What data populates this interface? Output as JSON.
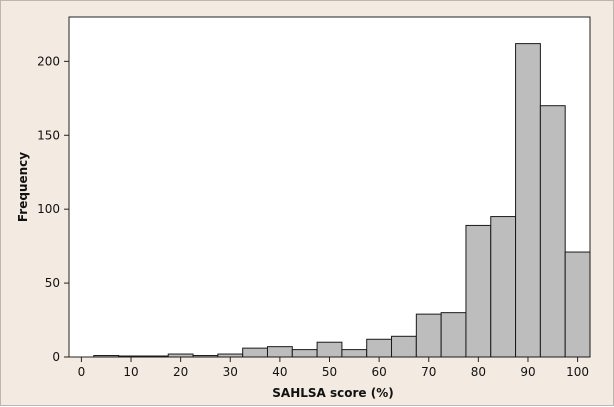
{
  "chart_data": {
    "type": "bar",
    "subtype": "histogram",
    "xlabel": "SAHLSA score (%)",
    "ylabel": "Frequency",
    "xlim": [
      -2.5,
      102.5
    ],
    "ylim": [
      0,
      230
    ],
    "xticks": [
      0,
      10,
      20,
      30,
      40,
      50,
      60,
      70,
      80,
      90,
      100
    ],
    "yticks": [
      0,
      50,
      100,
      150,
      200
    ],
    "bin_width": 5,
    "bins": [
      {
        "x0": 2.5,
        "x1": 7.5,
        "value": 1
      },
      {
        "x0": 7.5,
        "x1": 12.5,
        "value": 0
      },
      {
        "x0": 12.5,
        "x1": 17.5,
        "value": 0
      },
      {
        "x0": 17.5,
        "x1": 22.5,
        "value": 2
      },
      {
        "x0": 22.5,
        "x1": 27.5,
        "value": 1
      },
      {
        "x0": 27.5,
        "x1": 32.5,
        "value": 2
      },
      {
        "x0": 32.5,
        "x1": 37.5,
        "value": 6
      },
      {
        "x0": 37.5,
        "x1": 42.5,
        "value": 7
      },
      {
        "x0": 42.5,
        "x1": 47.5,
        "value": 5
      },
      {
        "x0": 47.5,
        "x1": 52.5,
        "value": 10
      },
      {
        "x0": 52.5,
        "x1": 57.5,
        "value": 5
      },
      {
        "x0": 57.5,
        "x1": 62.5,
        "value": 12
      },
      {
        "x0": 62.5,
        "x1": 67.5,
        "value": 14
      },
      {
        "x0": 67.5,
        "x1": 72.5,
        "value": 29
      },
      {
        "x0": 72.5,
        "x1": 77.5,
        "value": 30
      },
      {
        "x0": 77.5,
        "x1": 82.5,
        "value": 89
      },
      {
        "x0": 82.5,
        "x1": 87.5,
        "value": 95
      },
      {
        "x0": 87.5,
        "x1": 92.5,
        "value": 212
      },
      {
        "x0": 92.5,
        "x1": 97.5,
        "value": 170
      },
      {
        "x0": 97.5,
        "x1": 102.5,
        "value": 71
      }
    ],
    "grid": false,
    "bar_color": "#bdbdbd",
    "bar_edge_color": "#1a1a1a",
    "plot_background": "#ffffff",
    "figure_background": "#f3ebe1"
  }
}
